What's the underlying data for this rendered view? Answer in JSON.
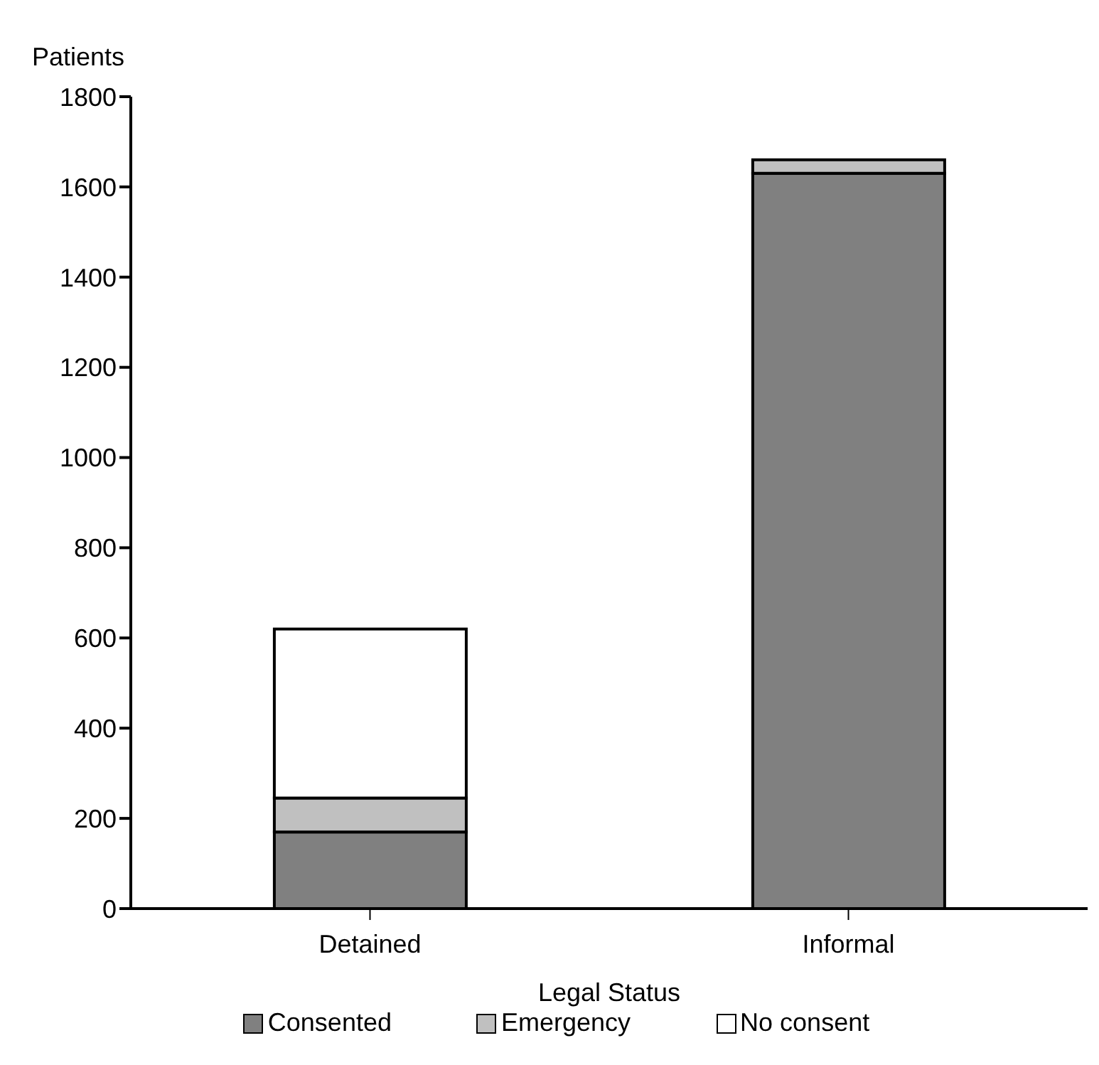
{
  "chart_data": {
    "type": "bar",
    "xlabel": "Legal Status",
    "ylabel": "Patients",
    "categories": [
      "Detained",
      "Informal"
    ],
    "stacked": true,
    "series": [
      {
        "name": "Consented",
        "color": "#808080",
        "values": [
          170,
          1630
        ]
      },
      {
        "name": "Emergency",
        "color": "#c0c0c0",
        "values": [
          75,
          30
        ]
      },
      {
        "name": "No consent",
        "color": "#ffffff",
        "values": [
          375,
          0
        ]
      }
    ],
    "ylim": [
      0,
      1800
    ],
    "yticks": [
      0,
      200,
      400,
      600,
      800,
      1000,
      1200,
      1400,
      1600,
      1800
    ],
    "grid": false,
    "legend": "bottom"
  }
}
